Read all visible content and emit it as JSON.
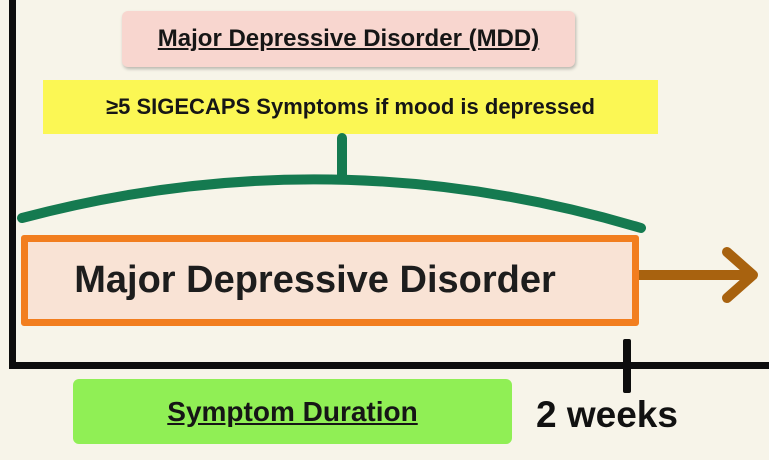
{
  "title": "Major Depressive Disorder (MDD)",
  "criteria": "≥5 SIGECAPS Symptoms if mood is depressed",
  "bar_label": "Major Depressive Disorder",
  "axis_label": "Symptom Duration",
  "tick_label": "2 weeks",
  "colors": {
    "background": "#f7f4e9",
    "title_box": "#f8d6cf",
    "criteria_box": "#fbf754",
    "brace": "#157a50",
    "bar_fill": "#f9e3d5",
    "bar_border": "#f27e1f",
    "arrow": "#a8620f",
    "duration_box": "#90ef55",
    "axis": "#0d0d0d"
  }
}
